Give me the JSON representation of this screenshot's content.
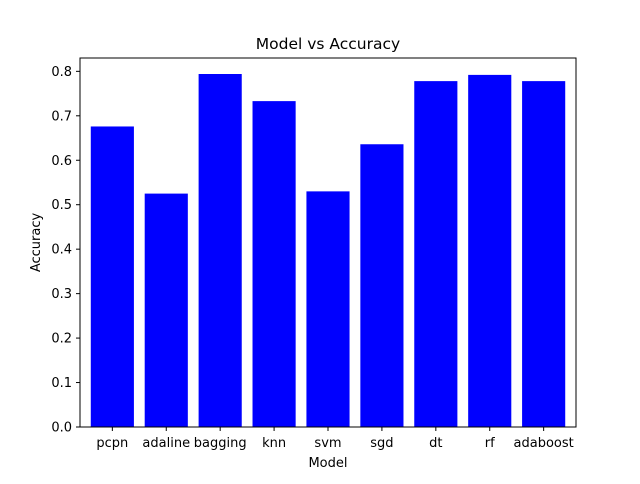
{
  "chart_data": {
    "type": "bar",
    "title": "Model vs Accuracy",
    "xlabel": "Model",
    "ylabel": "Accuracy",
    "categories": [
      "pcpn",
      "adaline",
      "bagging",
      "knn",
      "svm",
      "sgd",
      "dt",
      "rf",
      "adaboost"
    ],
    "values": [
      0.676,
      0.525,
      0.794,
      0.733,
      0.53,
      0.636,
      0.778,
      0.792,
      0.778
    ],
    "ylim": [
      0,
      0.83
    ],
    "yticks": [
      "0.0",
      "0.1",
      "0.2",
      "0.3",
      "0.4",
      "0.5",
      "0.6",
      "0.7",
      "0.8"
    ],
    "grid": false,
    "bar_color": "#0000ff"
  }
}
